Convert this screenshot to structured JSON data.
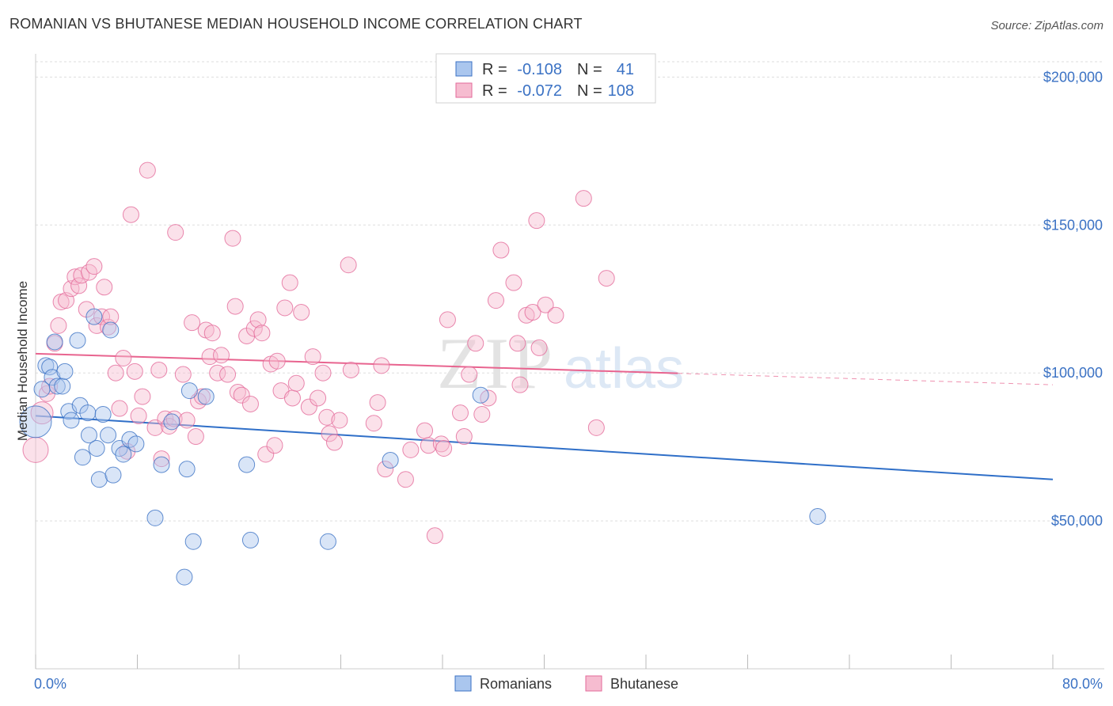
{
  "title": "ROMANIAN VS BHUTANESE MEDIAN HOUSEHOLD INCOME CORRELATION CHART",
  "source": "Source: ZipAtlas.com",
  "watermark": {
    "zip": "ZIP",
    "atlas": "atlas"
  },
  "colors": {
    "blue": "#3b72c4",
    "blue_fill": "#aac6ee",
    "blue_line": "#2f6fc8",
    "pink": "#e36a9a",
    "pink_fill": "#f6bcd0",
    "pink_line": "#e8648f",
    "grid": "#dddddd",
    "text_dark": "#333333"
  },
  "legend_top": {
    "rows": [
      {
        "r_label": "R =",
        "r_value": "-0.108",
        "n_label": "N =",
        "n_value": "41",
        "color": "blue"
      },
      {
        "r_label": "R =",
        "r_value": "-0.072",
        "n_label": "N =",
        "n_value": "108",
        "color": "pink"
      }
    ]
  },
  "legend_bottom": {
    "items": [
      {
        "label": "Romanians",
        "color": "blue"
      },
      {
        "label": "Bhutanese",
        "color": "pink"
      }
    ]
  },
  "chart_data": {
    "type": "scatter",
    "title": "ROMANIAN VS BHUTANESE MEDIAN HOUSEHOLD INCOME CORRELATION CHART",
    "xlabel": "",
    "ylabel": "Median Household Income",
    "xlim": [
      0,
      80
    ],
    "ylim": [
      0,
      210000
    ],
    "x_tick_labels": [
      "0.0%",
      "80.0%"
    ],
    "y_ticks": [
      50000,
      100000,
      150000,
      200000
    ],
    "y_tick_labels": [
      "$50,000",
      "$100,000",
      "$150,000",
      "$200,000"
    ],
    "grid": true,
    "legend_placement": "top-center",
    "series": [
      {
        "name": "Romanians",
        "color": "blue",
        "trend": {
          "x0": 0,
          "y0": 85500,
          "x1": 80,
          "y1": 64000,
          "dashed_from": null
        },
        "points": [
          [
            0.0,
            83500,
            20
          ],
          [
            0.5,
            94500,
            10
          ],
          [
            0.8,
            102500,
            10
          ],
          [
            1.1,
            102000,
            10
          ],
          [
            1.3,
            98500,
            10
          ],
          [
            1.5,
            110500,
            10
          ],
          [
            1.7,
            95500,
            10
          ],
          [
            2.1,
            95500,
            10
          ],
          [
            2.3,
            100500,
            10
          ],
          [
            2.6,
            87000,
            10
          ],
          [
            2.8,
            84000,
            10
          ],
          [
            3.3,
            111000,
            10
          ],
          [
            3.5,
            89000,
            10
          ],
          [
            3.7,
            71500,
            10
          ],
          [
            4.1,
            86500,
            10
          ],
          [
            4.2,
            79000,
            10
          ],
          [
            4.6,
            119000,
            10
          ],
          [
            4.8,
            74500,
            10
          ],
          [
            5.0,
            64000,
            10
          ],
          [
            5.3,
            86000,
            10
          ],
          [
            5.7,
            79000,
            10
          ],
          [
            5.9,
            114500,
            10
          ],
          [
            6.1,
            65500,
            10
          ],
          [
            6.6,
            74500,
            10
          ],
          [
            6.9,
            72500,
            10
          ],
          [
            7.4,
            77500,
            10
          ],
          [
            7.9,
            76000,
            10
          ],
          [
            9.4,
            51000,
            10
          ],
          [
            9.9,
            69000,
            10
          ],
          [
            10.7,
            83500,
            10
          ],
          [
            11.7,
            31000,
            10
          ],
          [
            11.9,
            67500,
            10
          ],
          [
            12.4,
            43000,
            10
          ],
          [
            12.1,
            94000,
            10
          ],
          [
            13.4,
            92000,
            10
          ],
          [
            16.6,
            69000,
            10
          ],
          [
            16.9,
            43500,
            10
          ],
          [
            23.0,
            43000,
            10
          ],
          [
            27.9,
            70500,
            10
          ],
          [
            35.0,
            92500,
            10
          ],
          [
            61.5,
            51500,
            10
          ]
        ]
      },
      {
        "name": "Bhutanese",
        "color": "pink",
        "trend": {
          "x0": 0,
          "y0": 106500,
          "x1": 80,
          "y1": 96000,
          "dashed_from": 50.5
        },
        "points": [
          [
            0.0,
            74000,
            16
          ],
          [
            0.5,
            86500,
            14
          ],
          [
            0.9,
            93000,
            10
          ],
          [
            1.1,
            95500,
            10
          ],
          [
            1.5,
            110000,
            10
          ],
          [
            1.8,
            116000,
            10
          ],
          [
            2.0,
            124000,
            10
          ],
          [
            2.4,
            124500,
            10
          ],
          [
            2.8,
            128500,
            10
          ],
          [
            3.1,
            132500,
            10
          ],
          [
            3.4,
            129500,
            10
          ],
          [
            3.6,
            133000,
            10
          ],
          [
            4.0,
            121500,
            10
          ],
          [
            4.2,
            134000,
            10
          ],
          [
            4.6,
            136000,
            10
          ],
          [
            4.8,
            116000,
            10
          ],
          [
            5.2,
            119000,
            10
          ],
          [
            5.4,
            129000,
            10
          ],
          [
            5.7,
            115500,
            10
          ],
          [
            5.9,
            119000,
            10
          ],
          [
            6.3,
            100000,
            10
          ],
          [
            6.6,
            88000,
            10
          ],
          [
            6.9,
            105000,
            10
          ],
          [
            7.2,
            73500,
            10
          ],
          [
            7.5,
            153500,
            10
          ],
          [
            7.8,
            100500,
            10
          ],
          [
            8.1,
            85500,
            10
          ],
          [
            8.4,
            92000,
            10
          ],
          [
            8.8,
            168500,
            10
          ],
          [
            9.4,
            81500,
            10
          ],
          [
            9.7,
            101000,
            10
          ],
          [
            9.9,
            71000,
            10
          ],
          [
            10.2,
            84500,
            10
          ],
          [
            10.5,
            82000,
            10
          ],
          [
            10.9,
            84500,
            10
          ],
          [
            11.0,
            147500,
            10
          ],
          [
            11.6,
            99500,
            10
          ],
          [
            11.9,
            84000,
            10
          ],
          [
            12.3,
            117000,
            10
          ],
          [
            12.6,
            78500,
            10
          ],
          [
            12.8,
            90500,
            10
          ],
          [
            13.1,
            92000,
            10
          ],
          [
            13.4,
            114500,
            10
          ],
          [
            13.7,
            105500,
            10
          ],
          [
            13.9,
            113500,
            10
          ],
          [
            14.3,
            100000,
            10
          ],
          [
            14.6,
            106000,
            10
          ],
          [
            15.1,
            99500,
            10
          ],
          [
            15.5,
            145500,
            10
          ],
          [
            15.7,
            122500,
            10
          ],
          [
            15.9,
            93500,
            10
          ],
          [
            16.2,
            92500,
            10
          ],
          [
            16.6,
            112500,
            10
          ],
          [
            16.9,
            89500,
            10
          ],
          [
            17.2,
            115000,
            10
          ],
          [
            17.5,
            118000,
            10
          ],
          [
            17.8,
            113500,
            10
          ],
          [
            18.1,
            72500,
            10
          ],
          [
            18.5,
            103000,
            10
          ],
          [
            18.8,
            75500,
            10
          ],
          [
            19.0,
            104000,
            10
          ],
          [
            19.3,
            94000,
            10
          ],
          [
            19.6,
            122000,
            10
          ],
          [
            20.0,
            130500,
            10
          ],
          [
            20.2,
            91500,
            10
          ],
          [
            20.5,
            96500,
            10
          ],
          [
            20.9,
            120500,
            10
          ],
          [
            21.5,
            88500,
            10
          ],
          [
            21.8,
            105500,
            10
          ],
          [
            22.2,
            91500,
            10
          ],
          [
            22.6,
            100000,
            10
          ],
          [
            22.9,
            85000,
            10
          ],
          [
            23.1,
            79500,
            10
          ],
          [
            23.5,
            76500,
            10
          ],
          [
            23.9,
            84000,
            10
          ],
          [
            24.6,
            136500,
            10
          ],
          [
            24.8,
            101000,
            10
          ],
          [
            26.6,
            83000,
            10
          ],
          [
            26.9,
            90000,
            10
          ],
          [
            27.2,
            102500,
            10
          ],
          [
            27.5,
            67500,
            10
          ],
          [
            29.1,
            64000,
            10
          ],
          [
            29.5,
            74000,
            10
          ],
          [
            30.6,
            80500,
            10
          ],
          [
            30.9,
            75500,
            10
          ],
          [
            31.4,
            45000,
            10
          ],
          [
            31.9,
            76000,
            10
          ],
          [
            32.1,
            74500,
            10
          ],
          [
            32.4,
            118000,
            10
          ],
          [
            33.4,
            86500,
            10
          ],
          [
            33.7,
            78500,
            10
          ],
          [
            34.1,
            99500,
            10
          ],
          [
            34.6,
            110000,
            10
          ],
          [
            35.1,
            86000,
            10
          ],
          [
            35.6,
            91500,
            10
          ],
          [
            36.2,
            124500,
            10
          ],
          [
            36.6,
            141500,
            10
          ],
          [
            37.6,
            130500,
            10
          ],
          [
            37.9,
            110000,
            10
          ],
          [
            38.1,
            96000,
            10
          ],
          [
            38.6,
            119500,
            10
          ],
          [
            39.1,
            120500,
            10
          ],
          [
            39.4,
            151500,
            10
          ],
          [
            39.6,
            108500,
            10
          ],
          [
            40.1,
            123000,
            10
          ],
          [
            40.9,
            119500,
            10
          ],
          [
            43.1,
            159000,
            10
          ],
          [
            44.1,
            81500,
            10
          ],
          [
            44.9,
            132000,
            10
          ]
        ]
      }
    ]
  }
}
